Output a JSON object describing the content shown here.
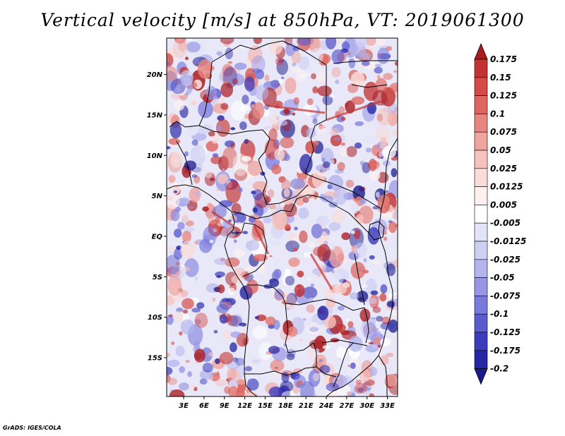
{
  "title": "Vertical velocity [m/s] at 850hPa, VT: 2019061300",
  "credit": "GrADS: IGES/COLA",
  "map": {
    "lat_ticks": [
      "20N",
      "15N",
      "10N",
      "5N",
      "EQ",
      "5S",
      "10S",
      "15S"
    ],
    "lat_values": [
      20,
      15,
      10,
      5,
      0,
      -5,
      -10,
      -15
    ],
    "lon_ticks": [
      "3E",
      "6E",
      "9E",
      "12E",
      "15E",
      "18E",
      "21E",
      "24E",
      "27E",
      "30E",
      "33E"
    ],
    "lon_values": [
      3,
      6,
      9,
      12,
      15,
      18,
      21,
      24,
      27,
      30,
      33
    ],
    "lon_range": [
      0.5,
      34.5
    ],
    "lat_range": [
      -19.8,
      24.5
    ]
  },
  "colorbar": {
    "labels": [
      "0.175",
      "0.15",
      "0.125",
      "0.1",
      "0.075",
      "0.05",
      "0.025",
      "0.0125",
      "0.005",
      "-0.005",
      "-0.0125",
      "-0.025",
      "-0.05",
      "-0.075",
      "-0.1",
      "-0.125",
      "-0.175",
      "-0.2"
    ],
    "colors": [
      "#a91d22",
      "#c33331",
      "#d44a46",
      "#de6661",
      "#e78680",
      "#f0a49e",
      "#f6c2bd",
      "#fadcd8",
      "#fdf0ee",
      "#ffffff",
      "#e4e4f8",
      "#cfcff4",
      "#b4b4ee",
      "#9797e6",
      "#7a7adc",
      "#5b5bce",
      "#3c3cbc",
      "#2727a6",
      "#1a1a8c"
    ]
  },
  "fields": {
    "warm_color": "#e06a6a",
    "cool_color": "#7f7fe0"
  }
}
